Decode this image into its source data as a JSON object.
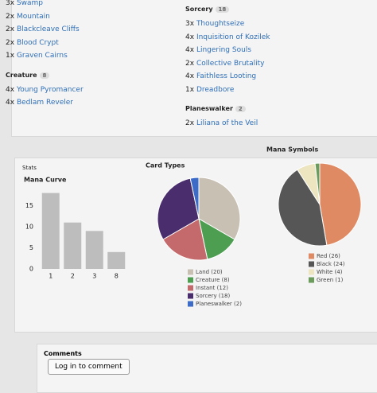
{
  "deck": {
    "left": [
      {
        "items": [
          {
            "qty": "3x",
            "name": "Swamp"
          },
          {
            "qty": "2x",
            "name": "Mountain"
          },
          {
            "qty": "2x",
            "name": "Blackcleave Cliffs"
          },
          {
            "qty": "2x",
            "name": "Blood Crypt"
          },
          {
            "qty": "1x",
            "name": "Graven Cairns"
          }
        ]
      },
      {
        "heading": "Creature",
        "count": "8",
        "items": [
          {
            "qty": "4x",
            "name": "Young Pyromancer"
          },
          {
            "qty": "4x",
            "name": "Bedlam Reveler"
          }
        ]
      }
    ],
    "right": [
      {
        "heading": "Sorcery",
        "count": "18",
        "items": [
          {
            "qty": "3x",
            "name": "Thoughtseize"
          },
          {
            "qty": "4x",
            "name": "Inquisition of Kozilek"
          },
          {
            "qty": "4x",
            "name": "Lingering Souls"
          },
          {
            "qty": "2x",
            "name": "Collective Brutality"
          },
          {
            "qty": "4x",
            "name": "Faithless Looting"
          },
          {
            "qty": "1x",
            "name": "Dreadbore"
          }
        ]
      },
      {
        "heading": "Planeswalker",
        "count": "2",
        "items": [
          {
            "qty": "2x",
            "name": "Liliana of the Veil"
          }
        ]
      }
    ]
  },
  "stats": {
    "title": "Stats"
  },
  "chart_data": [
    {
      "type": "bar",
      "title": "Mana Curve",
      "categories": [
        "1",
        "2",
        "3",
        "8"
      ],
      "values": [
        18,
        11,
        9,
        4
      ],
      "color": "#bdbdbd",
      "ylim": [
        0,
        20
      ],
      "yticks": [
        0,
        5,
        10,
        15
      ]
    },
    {
      "type": "pie",
      "title": "Card Types",
      "categories": [
        "Land (20)",
        "Creature (8)",
        "Instant (12)",
        "Sorcery (18)",
        "Planeswalker (2)"
      ],
      "values": [
        20,
        8,
        12,
        18,
        2
      ],
      "colors": [
        "#c9c0b4",
        "#4e9e52",
        "#c46a6c",
        "#4a2d6c",
        "#3c6cc8"
      ]
    },
    {
      "type": "pie",
      "title": "Mana Symbols",
      "categories": [
        "Red (26)",
        "Black (24)",
        "White (4)",
        "Green (1)"
      ],
      "values": [
        26,
        24,
        4,
        1
      ],
      "colors": [
        "#df8a63",
        "#565656",
        "#ece5c0",
        "#6c9c5c"
      ]
    }
  ],
  "comments": {
    "title": "Comments",
    "button": "Log in to comment"
  }
}
